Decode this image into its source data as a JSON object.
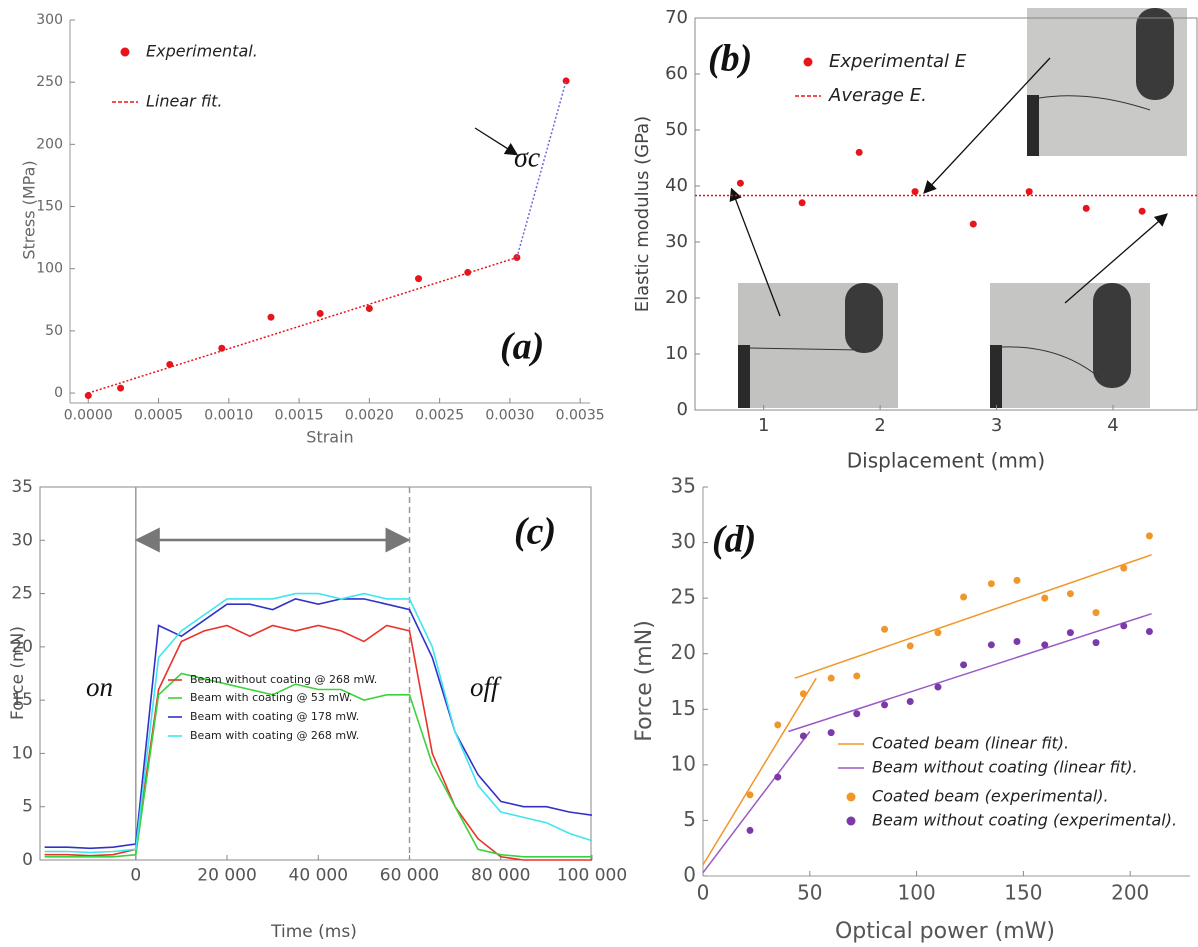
{
  "chart_data": [
    {
      "type": "scatter",
      "xlabel": "Strain",
      "ylabel": "Stress (MPa)",
      "xlim": [
        -0.00013,
        0.00357
      ],
      "ylim": [
        -8,
        300
      ],
      "xticks": [
        {
          "value": 0,
          "label": "0.0000"
        },
        {
          "value": 0.0005,
          "label": "0.0005"
        },
        {
          "value": 0.001,
          "label": "0.0010"
        },
        {
          "value": 0.0015,
          "label": "0.0015"
        },
        {
          "value": 0.002,
          "label": "0.0020"
        },
        {
          "value": 0.0025,
          "label": "0.0025"
        },
        {
          "value": 0.003,
          "label": "0.0030"
        },
        {
          "value": 0.0035,
          "label": "0.0035"
        }
      ],
      "yticks": [
        0,
        50,
        100,
        150,
        200,
        250,
        300
      ],
      "annotations": [
        "σc",
        "(a)"
      ],
      "series": [
        {
          "name": "Experimental.",
          "color": "#e8141c",
          "mode": "markers",
          "x": [
            0,
            0.00023,
            0.00058,
            0.00095,
            0.0013,
            0.00165,
            0.002,
            0.00235,
            0.0027,
            0.00305,
            0.0034
          ],
          "values": [
            -2,
            4,
            23,
            36,
            61,
            64,
            68,
            92,
            97,
            109,
            251
          ]
        },
        {
          "name": "Linear fit.",
          "color": "#e8141c",
          "mode": "lines",
          "dash": "dotted",
          "x": [
            0,
            0.00305
          ],
          "values": [
            0,
            109
          ]
        },
        {
          "color": "#6a6ae0",
          "mode": "lines",
          "dash": "dotted",
          "x": [
            0.00305,
            0.0034
          ],
          "values": [
            109,
            251
          ]
        }
      ]
    },
    {
      "type": "scatter",
      "xlabel": "Displacement (mm)",
      "ylabel": "Elastic modulus (GPa)",
      "xlim": [
        0.41,
        4.73
      ],
      "ylim": [
        0,
        70
      ],
      "frame": true,
      "xticks": [
        1,
        2,
        3,
        4
      ],
      "yticks": [
        0,
        10,
        20,
        30,
        40,
        50,
        60,
        70
      ],
      "annotations": [
        "(b)"
      ],
      "series": [
        {
          "name": "Experimental E",
          "color": "#e8141c",
          "mode": "markers",
          "x": [
            0.8,
            1.33,
            1.82,
            2.3,
            2.8,
            3.28,
            3.77,
            4.25
          ],
          "values": [
            40.5,
            37,
            46,
            39,
            33.2,
            39,
            36,
            35.5
          ]
        },
        {
          "name": "Average E.",
          "color": "#e8141c",
          "mode": "lines",
          "dash": "dotted",
          "x": [
            0.41,
            4.73
          ],
          "values": [
            38.3,
            38.3
          ]
        }
      ]
    },
    {
      "type": "line",
      "xlabel": "Time (ms)",
      "ylabel": "Force (mN)",
      "xlim": [
        -21000,
        100000
      ],
      "ylim": [
        0,
        35
      ],
      "frame": true,
      "xticks": [
        0,
        {
          "value": 20000,
          "label": "20 000"
        },
        {
          "value": 40000,
          "label": "40 000"
        },
        {
          "value": 60000,
          "label": "60 000"
        },
        {
          "value": 80000,
          "label": "80 000"
        },
        {
          "value": 100000,
          "label": "100 000"
        }
      ],
      "yticks": [
        0,
        5,
        10,
        15,
        20,
        25,
        30,
        35
      ],
      "vlines": [
        0,
        60000
      ],
      "annotations": [
        "on",
        "off",
        "(c)"
      ],
      "x": [
        -20000,
        -15000,
        -10000,
        -5000,
        0,
        5000,
        10000,
        15000,
        20000,
        25000,
        30000,
        35000,
        40000,
        45000,
        50000,
        55000,
        60000,
        65000,
        70000,
        75000,
        80000,
        85000,
        90000,
        95000,
        100000
      ],
      "series": [
        {
          "name": "Beam without coating @ 268 mW.",
          "color": "#e8332a",
          "values": [
            0.5,
            0.5,
            0.4,
            0.5,
            1,
            16,
            20.5,
            21.5,
            22,
            21,
            22,
            21.5,
            22,
            21.5,
            20.5,
            22,
            21.5,
            10,
            5,
            2,
            0.3,
            0,
            0,
            0,
            0
          ]
        },
        {
          "name": "Beam with coating @ 53 mW.",
          "color": "#3cd23c",
          "values": [
            0.3,
            0.3,
            0.3,
            0.3,
            0.5,
            15.5,
            17.5,
            17,
            16.5,
            16,
            15.5,
            16.5,
            16,
            16,
            15,
            15.5,
            15.5,
            9,
            5,
            1,
            0.5,
            0.3,
            0.3,
            0.3,
            0.3
          ]
        },
        {
          "name": "Beam with coating @ 178 mW.",
          "color": "#3232c8",
          "values": [
            1.2,
            1.2,
            1.1,
            1.2,
            1.5,
            22,
            21,
            22.5,
            24,
            24,
            23.5,
            24.5,
            24,
            24.5,
            24.5,
            24,
            23.5,
            19,
            12,
            8,
            5.5,
            5,
            5,
            4.5,
            4.2
          ]
        },
        {
          "name": "Beam with coating @ 268 mW.",
          "color": "#3ee6f0",
          "values": [
            0.8,
            0.8,
            0.7,
            0.8,
            1,
            19,
            21.5,
            23,
            24.5,
            24.5,
            24.5,
            25,
            25,
            24.5,
            25,
            24.5,
            24.5,
            20,
            12,
            7,
            4.5,
            4,
            3.5,
            2.5,
            1.8
          ]
        }
      ]
    },
    {
      "type": "scatter",
      "xlabel": "Optical power (mW)",
      "ylabel": "Force (mN)",
      "xlim": [
        0,
        228
      ],
      "ylim": [
        0,
        35
      ],
      "xticks": [
        0,
        50,
        100,
        150,
        200
      ],
      "yticks": [
        0,
        5,
        10,
        15,
        20,
        25,
        30,
        35
      ],
      "annotations": [
        "(d)"
      ],
      "series": [
        {
          "name": "Coated beam (linear fit).",
          "color": "#f0962a",
          "mode": "lines",
          "x": [
            0,
            53
          ],
          "values": [
            1,
            17.8
          ]
        },
        {
          "color": "#f0962a",
          "mode": "lines",
          "x": [
            43,
            210
          ],
          "values": [
            17.8,
            28.9
          ]
        },
        {
          "name": "Beam without coating (linear fit).",
          "color": "#9a5ac4",
          "mode": "lines",
          "x": [
            0,
            50
          ],
          "values": [
            0.3,
            13
          ]
        },
        {
          "color": "#9a5ac4",
          "mode": "lines",
          "x": [
            40,
            210
          ],
          "values": [
            13,
            23.6
          ]
        },
        {
          "name": "Coated beam (experimental).",
          "color": "#f0962a",
          "mode": "markers",
          "x": [
            22,
            35,
            47,
            60,
            72,
            85,
            97,
            110,
            122,
            135,
            147,
            160,
            172,
            184,
            197,
            209
          ],
          "values": [
            7.3,
            13.6,
            16.4,
            17.8,
            18,
            22.2,
            20.7,
            21.9,
            25.1,
            26.3,
            26.6,
            25,
            25.4,
            23.7,
            27.7,
            30.6
          ]
        },
        {
          "name": "Beam without coating (experimental).",
          "color": "#7a3aaa",
          "mode": "markers",
          "x": [
            22,
            35,
            47,
            60,
            72,
            85,
            97,
            110,
            122,
            135,
            147,
            160,
            172,
            184,
            197,
            209
          ],
          "values": [
            4.1,
            8.9,
            12.6,
            12.9,
            14.6,
            15.4,
            15.7,
            17,
            19,
            20.8,
            21.1,
            20.8,
            21.9,
            21,
            22.5,
            22
          ]
        }
      ]
    }
  ]
}
